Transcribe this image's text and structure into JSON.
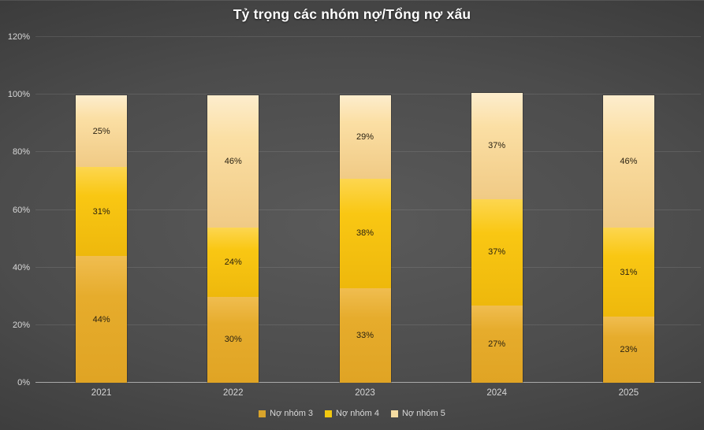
{
  "chart_data": {
    "type": "bar",
    "stacked": true,
    "title": "Tỷ trọng các nhóm nợ/Tổng nợ xấu",
    "categories": [
      "2021",
      "2022",
      "2023",
      "2024",
      "2025"
    ],
    "series": [
      {
        "name": "Nợ nhóm 3",
        "values": [
          44,
          30,
          33,
          27,
          23
        ],
        "legend_color": "#D9A42B",
        "gradient": [
          "#F0BD50",
          "#E6AC2C",
          "#E0A424"
        ]
      },
      {
        "name": "Nợ nhóm 4",
        "values": [
          31,
          24,
          38,
          37,
          31
        ],
        "legend_color": "#F2C80F",
        "gradient": [
          "#FDD64F",
          "#F9C713",
          "#EEB80C"
        ]
      },
      {
        "name": "Nợ nhóm 5",
        "values": [
          25,
          46,
          29,
          37,
          46
        ],
        "legend_color": "#F4DCA2",
        "gradient": [
          "#FDEDCD",
          "#FBDFA4",
          "#F0CA85"
        ]
      }
    ],
    "value_suffix": "%",
    "y_ticks": [
      "0%",
      "20%",
      "40%",
      "60%",
      "80%",
      "100%",
      "120%"
    ],
    "ylim": [
      0,
      120
    ],
    "grid": true,
    "legend_position": "bottom",
    "colors": {
      "title_text": "#FFFFFF",
      "axis_text": "#D9D9D9",
      "data_label": "#2A2212",
      "gridline": "rgba(255,255,255,0.10)",
      "baseline": "#A9A9A9",
      "background_center": "#5A5A5A",
      "background_edge": "#2A2A2A"
    }
  }
}
